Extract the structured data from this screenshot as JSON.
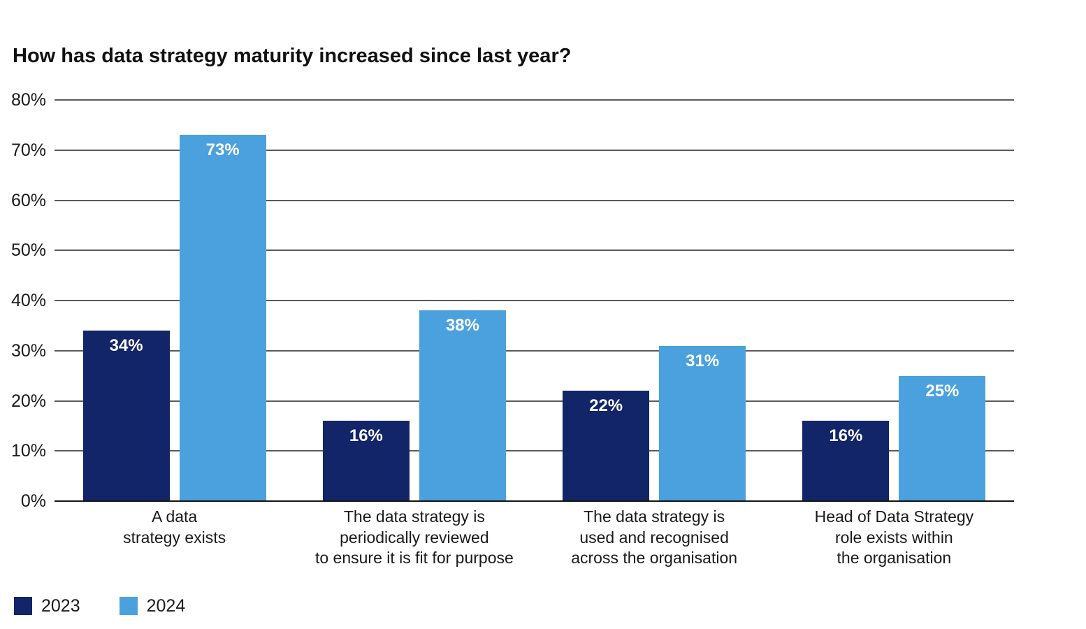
{
  "title": "How has data strategy maturity increased since last year?",
  "chart_data": {
    "type": "bar",
    "title": "How has data strategy maturity increased since last year?",
    "categories": [
      [
        "A data",
        "strategy exists"
      ],
      [
        "The data strategy is",
        "periodically reviewed",
        "to ensure it is fit for purpose"
      ],
      [
        "The data strategy is",
        "used and recognised",
        "across the organisation"
      ],
      [
        "Head of Data Strategy",
        "role exists within",
        "the organisation"
      ]
    ],
    "series": [
      {
        "name": "2023",
        "color": "#122568",
        "values": [
          34,
          16,
          22,
          16
        ]
      },
      {
        "name": "2024",
        "color": "#4aa1dd",
        "values": [
          73,
          38,
          31,
          25
        ]
      }
    ],
    "value_suffix": "%",
    "xlabel": "",
    "ylabel": "",
    "ylim": [
      0,
      80
    ],
    "ytick_step": 10,
    "ytick_labels": [
      "0%",
      "10%",
      "20%",
      "30%",
      "40%",
      "50%",
      "60%",
      "70%",
      "80%"
    ],
    "grid": true,
    "grid_color": "#5a5a5a",
    "baseline_color": "#141414",
    "value_label_color": "#ffffff",
    "legend_position": "bottom-left"
  },
  "legend": {
    "items": [
      {
        "label": "2023",
        "color": "#122568"
      },
      {
        "label": "2024",
        "color": "#4aa1dd"
      }
    ]
  }
}
